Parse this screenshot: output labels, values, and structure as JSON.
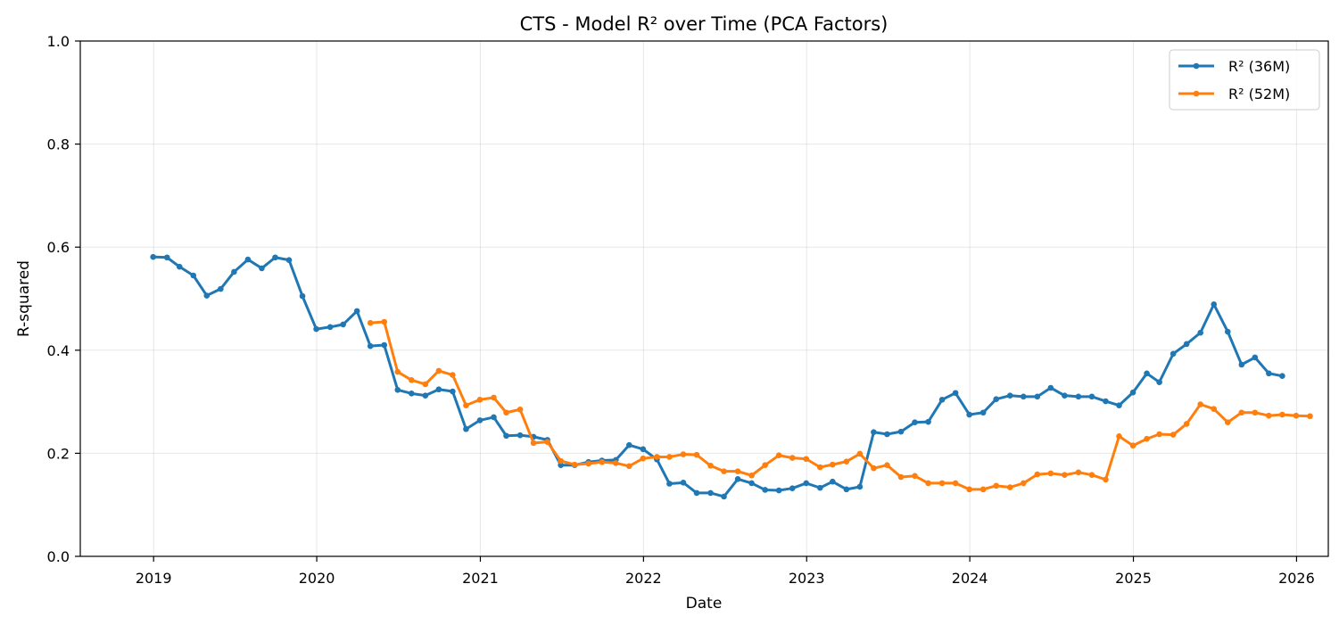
{
  "chart_data": {
    "type": "line",
    "title": "CTS - Model R² over Time (PCA Factors)",
    "xlabel": "Date",
    "ylabel": "R-squared",
    "ylim": [
      0,
      1
    ],
    "xlim": [
      "2018-07-21",
      "2026-03-13"
    ],
    "x_ticks": [
      "2019-01-01",
      "2020-01-01",
      "2021-01-01",
      "2022-01-01",
      "2023-01-01",
      "2024-01-01",
      "2025-01-01",
      "2026-01-01"
    ],
    "x_tick_labels": [
      "2019",
      "2020",
      "2021",
      "2022",
      "2023",
      "2024",
      "2025",
      "2026"
    ],
    "y_ticks": [
      0.0,
      0.2,
      0.4,
      0.6,
      0.8,
      1.0
    ],
    "y_tick_labels": [
      "0.0",
      "0.2",
      "0.4",
      "0.6",
      "0.8",
      "1.0"
    ],
    "grid": true,
    "legend_position": "top-right",
    "series": [
      {
        "name": "R² (36M)",
        "color": "#1f77b4",
        "start": "2018-12",
        "values": [
          0.581,
          0.58,
          0.562,
          0.545,
          0.506,
          0.519,
          0.552,
          0.576,
          0.559,
          0.58,
          0.575,
          0.505,
          0.441,
          0.445,
          0.45,
          0.476,
          0.408,
          0.41,
          0.323,
          0.316,
          0.312,
          0.324,
          0.32,
          0.247,
          0.264,
          0.27,
          0.234,
          0.235,
          0.232,
          0.226,
          0.177,
          0.177,
          0.183,
          0.186,
          0.187,
          0.216,
          0.208,
          0.188,
          0.141,
          0.143,
          0.123,
          0.123,
          0.116,
          0.15,
          0.142,
          0.129,
          0.128,
          0.132,
          0.142,
          0.133,
          0.145,
          0.13,
          0.135,
          0.241,
          0.237,
          0.242,
          0.26,
          0.261,
          0.304,
          0.317,
          0.275,
          0.279,
          0.305,
          0.312,
          0.31,
          0.31,
          0.327,
          0.312,
          0.31,
          0.31,
          0.301,
          0.293,
          0.318,
          0.355,
          0.338,
          0.393,
          0.412,
          0.434,
          0.489,
          0.436,
          0.372,
          0.386,
          0.355,
          0.35
        ]
      },
      {
        "name": "R² (52M)",
        "color": "#ff7f0e",
        "start": "2020-04",
        "values": [
          0.453,
          0.455,
          0.358,
          0.342,
          0.334,
          0.36,
          0.352,
          0.293,
          0.304,
          0.308,
          0.279,
          0.285,
          0.22,
          0.222,
          0.185,
          0.178,
          0.18,
          0.183,
          0.181,
          0.175,
          0.19,
          0.193,
          0.193,
          0.198,
          0.197,
          0.176,
          0.165,
          0.165,
          0.157,
          0.177,
          0.196,
          0.191,
          0.189,
          0.173,
          0.178,
          0.184,
          0.199,
          0.171,
          0.177,
          0.154,
          0.156,
          0.142,
          0.142,
          0.142,
          0.13,
          0.13,
          0.137,
          0.134,
          0.142,
          0.159,
          0.161,
          0.158,
          0.163,
          0.158,
          0.149,
          0.233,
          0.215,
          0.228,
          0.237,
          0.236,
          0.257,
          0.295,
          0.286,
          0.26,
          0.279,
          0.279,
          0.273,
          0.275,
          0.273,
          0.272
        ]
      }
    ]
  }
}
